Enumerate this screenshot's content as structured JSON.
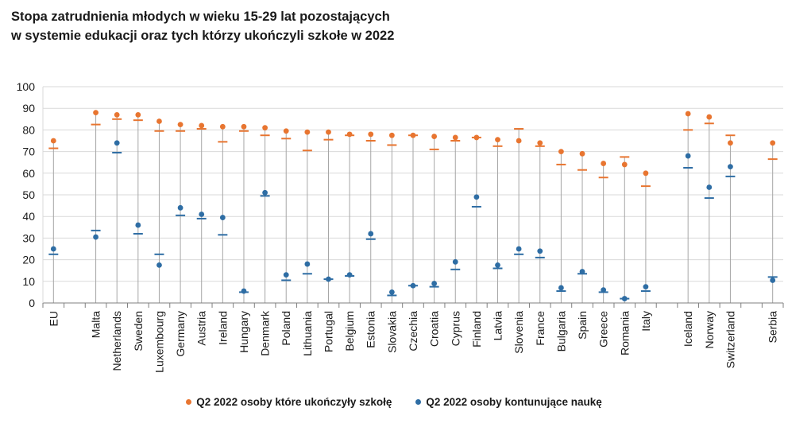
{
  "title": {
    "line1": "Stopa zatrudnienia młodych w wieku 15-29 lat pozostających",
    "line2": "w systemie edukacji oraz tych którzy ukończyli szkołe w 2022"
  },
  "colors": {
    "orange": "#E87530",
    "blue": "#2E6DA4",
    "grid": "#d9d9d9",
    "axis": "#7f7f7f",
    "stem": "#a6a6a6"
  },
  "chart_data": {
    "type": "scatter",
    "ylim": [
      0,
      100
    ],
    "yticks": [
      0,
      10,
      20,
      30,
      40,
      50,
      60,
      70,
      80,
      90,
      100
    ],
    "grid": true,
    "legend_position": "bottom",
    "categories": [
      "EU",
      "",
      "Malta",
      "Netherlands",
      "Sweden",
      "Luxembourg",
      "Germany",
      "Austria",
      "Ireland",
      "Hungary",
      "Denmark",
      "Poland",
      "Lithuania",
      "Portugal",
      "Belgium",
      "Estonia",
      "Slovakia",
      "Czechia",
      "Croatia",
      "Cyprus",
      "Finland",
      "Latvia",
      "Slovenia",
      "France",
      "Bulgaria",
      "Spain",
      "Greece",
      "Romania",
      "Italy",
      "",
      "Iceland",
      "Norway",
      "Switzerland",
      "",
      "Serbia"
    ],
    "series": [
      {
        "name": "Q2 2022 osoby które ukończyły szkołę",
        "color": "#E87530",
        "values": [
          75,
          null,
          88,
          87,
          87,
          84,
          82.5,
          82,
          81.5,
          81.5,
          81,
          79.5,
          79,
          79,
          78,
          78,
          77.5,
          77.5,
          77,
          76.5,
          76.5,
          75.5,
          75,
          74,
          70,
          69,
          64.5,
          64,
          60,
          null,
          87.5,
          86,
          74,
          null,
          74
        ],
        "marker_values": [
          71.5,
          null,
          82.5,
          85,
          84.5,
          79.5,
          79.5,
          80.5,
          74.5,
          79.5,
          77.5,
          76,
          70.5,
          75.5,
          77.5,
          75,
          73,
          77.5,
          71,
          75,
          76.5,
          72.5,
          80.5,
          72.5,
          64,
          61.5,
          58,
          67.5,
          54,
          null,
          80,
          83,
          77.5,
          null,
          66.5
        ]
      },
      {
        "name": "Q2 2022 osoby kontunujące naukę",
        "color": "#2E6DA4",
        "values": [
          25,
          null,
          30.5,
          74,
          36,
          17.5,
          44,
          41,
          39.5,
          5.5,
          51,
          13,
          18,
          11,
          13,
          32,
          5,
          8,
          9,
          19,
          49,
          17.5,
          25,
          24,
          7,
          14.5,
          6,
          2,
          7.5,
          null,
          68,
          53.5,
          63,
          null,
          10.5
        ],
        "marker_values": [
          22.5,
          null,
          33.5,
          69.5,
          32,
          22.5,
          40.5,
          39,
          31.5,
          5,
          49.5,
          10.5,
          13.5,
          11,
          12.5,
          29.5,
          3.5,
          8,
          7.5,
          15.5,
          44.5,
          16,
          22.5,
          21,
          5.5,
          13.5,
          5,
          2,
          5.5,
          null,
          62.5,
          48.5,
          58.5,
          null,
          12
        ]
      }
    ]
  },
  "legend": {
    "item1": "Q2 2022 osoby które ukończyły szkołę",
    "item2": "Q2 2022 osoby kontunujące naukę"
  }
}
